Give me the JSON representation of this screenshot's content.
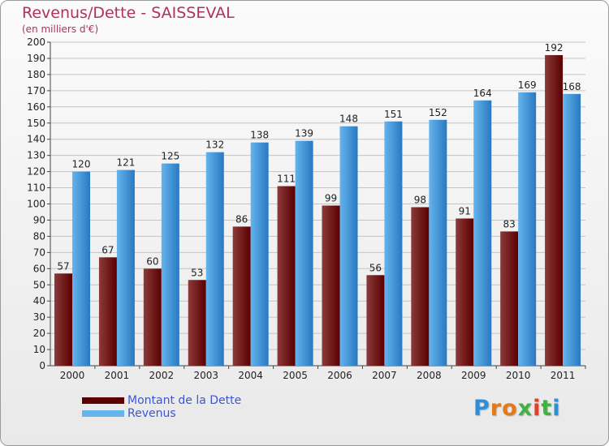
{
  "title": "Revenus/Dette - SAISSEVAL",
  "subtitle": "(en milliers d'€)",
  "colors": {
    "debt_light": "#8b3a3a",
    "debt_dark": "#5a0000",
    "revenue_light": "#64b4ee",
    "revenue_dark": "#2a78c0"
  },
  "legend": {
    "debt": "Montant de la Dette",
    "revenue": "Revenus"
  },
  "logo": {
    "letters": [
      "P",
      "r",
      "o",
      "x",
      "i",
      "t",
      "i"
    ],
    "colors": [
      "#2f8fd6",
      "#e07a1a",
      "#e07a1a",
      "#3db43d",
      "#d9442a",
      "#3db43d",
      "#2f8fd6"
    ]
  },
  "chart_data": {
    "type": "bar",
    "title": "Revenus/Dette - SAISSEVAL",
    "subtitle": "(en milliers d'€)",
    "categories": [
      "2000",
      "2001",
      "2002",
      "2003",
      "2004",
      "2005",
      "2006",
      "2007",
      "2008",
      "2009",
      "2010",
      "2011"
    ],
    "series": [
      {
        "name": "Montant de la Dette",
        "values": [
          57,
          67,
          60,
          53,
          86,
          111,
          99,
          56,
          98,
          91,
          83,
          192
        ]
      },
      {
        "name": "Revenus",
        "values": [
          120,
          121,
          125,
          132,
          138,
          139,
          148,
          151,
          152,
          164,
          169,
          168
        ]
      }
    ],
    "ylim": [
      0,
      200
    ],
    "ytick_step": 10,
    "grid": true,
    "legend_position": "bottom-left"
  }
}
